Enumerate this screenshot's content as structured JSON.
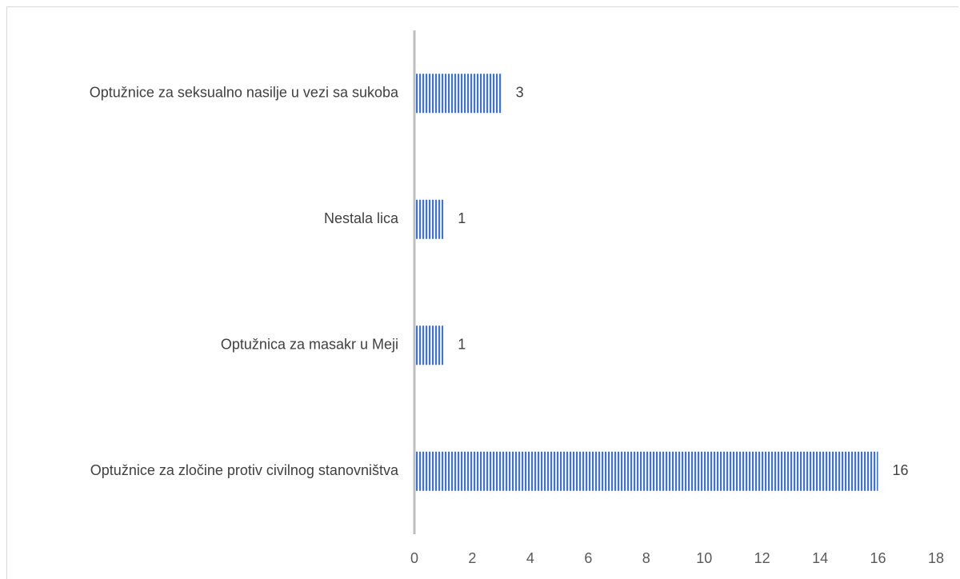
{
  "chart_data": {
    "type": "bar",
    "orientation": "horizontal",
    "categories": [
      "Optužnice za seksualno nasilje u vezi sa sukoba",
      "Nestala lica",
      "Optužnica za masakr u Meji",
      "Optužnice za zločine protiv civilnog stanovništva"
    ],
    "values": [
      3,
      1,
      1,
      16
    ],
    "data_labels": [
      "3",
      "1",
      "1",
      "16"
    ],
    "xlim": [
      0,
      18
    ],
    "x_ticks": [
      0,
      2,
      4,
      6,
      8,
      10,
      12,
      14,
      16,
      18
    ],
    "grid": false,
    "legend": "none",
    "bar_color": "#4472c4",
    "bar_pattern": "vertical-stripes"
  }
}
